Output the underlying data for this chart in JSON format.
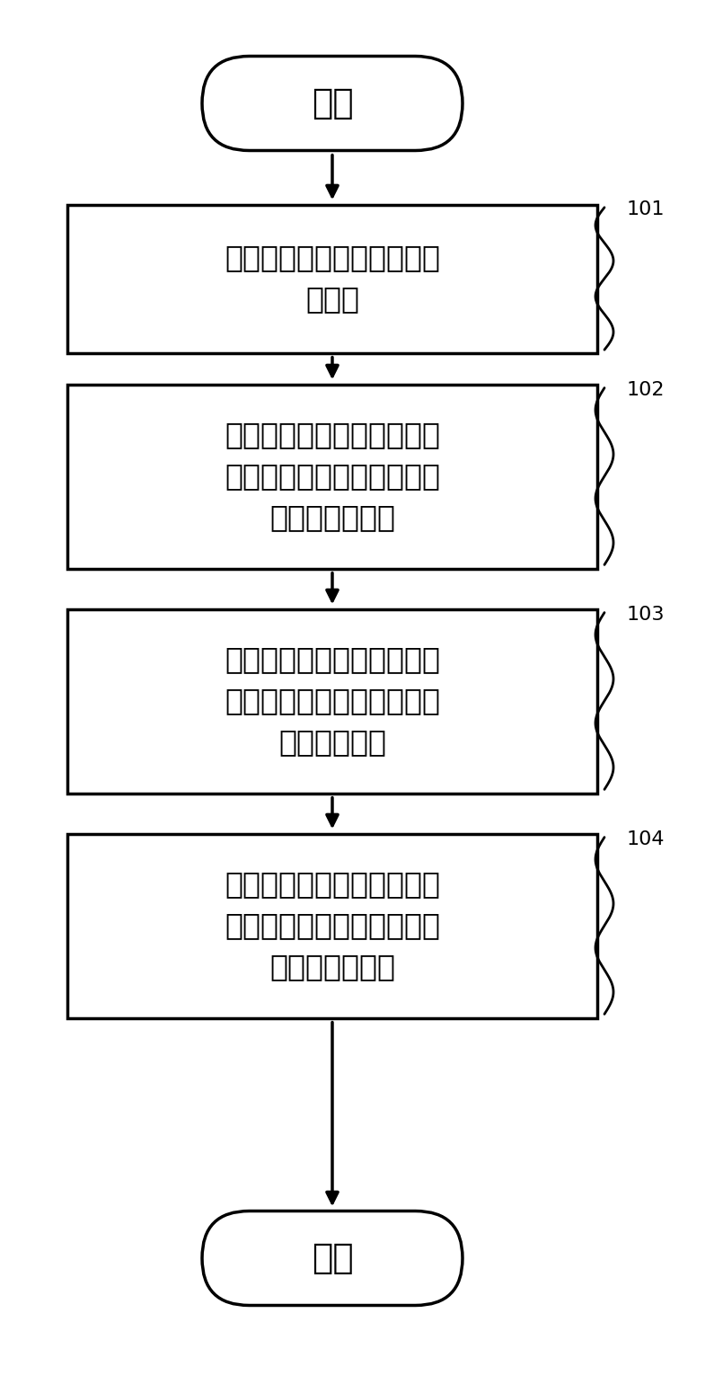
{
  "bg_color": "#ffffff",
  "line_color": "#000000",
  "line_width": 2.5,
  "font_color": "#000000",
  "start_label": "开始",
  "end_label": "结束",
  "boxes": [
    {
      "text": "接收待测试的测试文件和测\n试需求",
      "label": "101"
    },
    {
      "text": "根据测试文件在预设的云平\n台上部署多个用于执行测试\n文件的目标容器",
      "label": "102"
    },
    {
      "text": "根据测试需求选择多个目标\n容器中的至少一个目标容器\n生成测试进程",
      "label": "103"
    },
    {
      "text": "根据预设的数据模板对测试\n进程的测试结果进行数据整\n合生成测试结果",
      "label": "104"
    }
  ],
  "font_size_box": 24,
  "font_size_terminal": 28,
  "font_size_label": 16
}
